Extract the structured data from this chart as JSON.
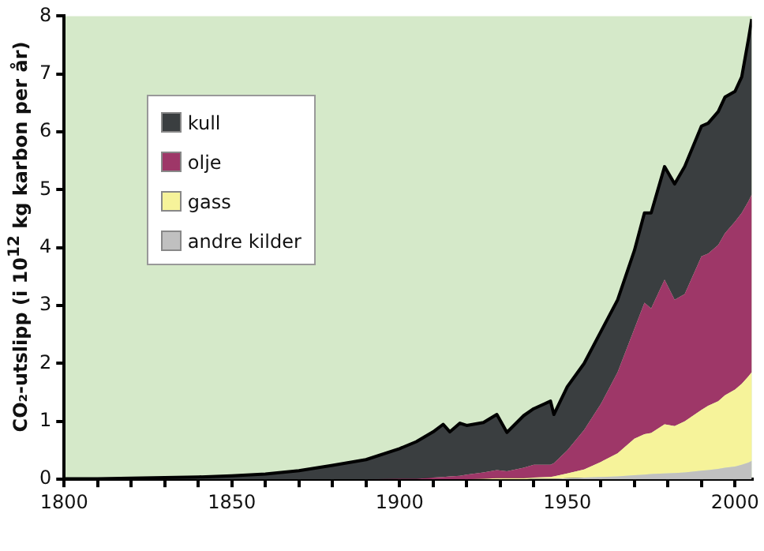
{
  "chart_data": {
    "type": "area",
    "stacked": true,
    "ylabel": "CO₂-utslipp (i 10$^{12}$ kg karbon per år)",
    "x": [
      1800,
      1810,
      1820,
      1830,
      1840,
      1850,
      1860,
      1870,
      1880,
      1890,
      1900,
      1905,
      1910,
      1913,
      1915,
      1918,
      1920,
      1925,
      1929,
      1932,
      1937,
      1940,
      1945,
      1946,
      1950,
      1955,
      1960,
      1965,
      1970,
      1973,
      1975,
      1979,
      1982,
      1985,
      1990,
      1992,
      1995,
      1997,
      2000,
      2002,
      2004,
      2005
    ],
    "series": [
      {
        "name": "andre kilder",
        "color": "#c0c0c0",
        "values": [
          0,
          0,
          0,
          0,
          0,
          0,
          0,
          0,
          0,
          0,
          0,
          0,
          0,
          0,
          0,
          0,
          0,
          0,
          0,
          0,
          0,
          0.01,
          0.01,
          0.01,
          0.02,
          0.03,
          0.04,
          0.05,
          0.07,
          0.08,
          0.09,
          0.1,
          0.11,
          0.12,
          0.15,
          0.16,
          0.18,
          0.2,
          0.22,
          0.25,
          0.29,
          0.32
        ]
      },
      {
        "name": "gass",
        "color": "#f6f39a",
        "values": [
          0,
          0,
          0,
          0,
          0,
          0,
          0,
          0,
          0,
          0,
          0,
          0,
          0,
          0,
          0,
          0,
          0,
          0.01,
          0.02,
          0.02,
          0.02,
          0.02,
          0.03,
          0.04,
          0.08,
          0.14,
          0.26,
          0.4,
          0.63,
          0.7,
          0.71,
          0.85,
          0.81,
          0.88,
          1.05,
          1.11,
          1.17,
          1.25,
          1.33,
          1.4,
          1.49,
          1.53
        ]
      },
      {
        "name": "olje",
        "color": "#9e3768",
        "values": [
          0,
          0,
          0,
          0,
          0,
          0,
          0,
          0,
          0,
          0,
          0.01,
          0.01,
          0.03,
          0.04,
          0.05,
          0.06,
          0.08,
          0.11,
          0.14,
          0.12,
          0.18,
          0.22,
          0.21,
          0.23,
          0.4,
          0.68,
          1.0,
          1.4,
          1.9,
          2.27,
          2.15,
          2.5,
          2.18,
          2.2,
          2.65,
          2.63,
          2.7,
          2.8,
          2.9,
          2.95,
          3.02,
          3.07
        ]
      },
      {
        "name": "kull",
        "color": "#3a3e40",
        "values": [
          0.01,
          0.01,
          0.02,
          0.03,
          0.04,
          0.06,
          0.09,
          0.15,
          0.24,
          0.34,
          0.52,
          0.64,
          0.79,
          0.91,
          0.77,
          0.91,
          0.85,
          0.86,
          0.96,
          0.67,
          0.9,
          0.97,
          1.1,
          0.84,
          1.1,
          1.15,
          1.25,
          1.25,
          1.35,
          1.55,
          1.65,
          1.95,
          2.0,
          2.2,
          2.25,
          2.25,
          2.3,
          2.35,
          2.25,
          2.35,
          2.8,
          3.03
        ]
      }
    ],
    "xlim": [
      1800,
      2005
    ],
    "xticks": [
      1800,
      {
        "value": 1810,
        "label": null
      },
      {
        "value": 1820,
        "label": null
      },
      {
        "value": 1830,
        "label": null
      },
      {
        "value": 1840,
        "label": null
      },
      1850,
      {
        "value": 1860,
        "label": null
      },
      {
        "value": 1870,
        "label": null
      },
      {
        "value": 1880,
        "label": null
      },
      {
        "value": 1890,
        "label": null
      },
      1900,
      {
        "value": 1910,
        "label": null
      },
      {
        "value": 1920,
        "label": null
      },
      {
        "value": 1930,
        "label": null
      },
      {
        "value": 1940,
        "label": null
      },
      1950,
      {
        "value": 1960,
        "label": null
      },
      {
        "value": 1970,
        "label": null
      },
      {
        "value": 1980,
        "label": null
      },
      {
        "value": 1990,
        "label": null
      },
      2000
    ],
    "ylim": [
      0,
      8
    ],
    "yticks": [
      0,
      1,
      2,
      3,
      4,
      5,
      6,
      7,
      8
    ],
    "legend": "top left",
    "grid": false
  }
}
